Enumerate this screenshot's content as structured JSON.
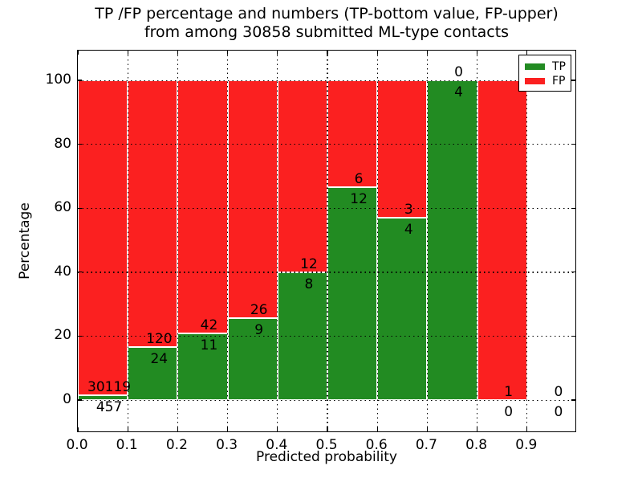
{
  "figure": {
    "title_line1": "TP /FP percentage and numbers (TP-bottom value, FP-upper)",
    "title_line2": "from among 30858 submitted ML-type contacts"
  },
  "chart_data": {
    "type": "bar",
    "subtype": "stacked-100-percent",
    "title": "TP /FP percentage and numbers (TP-bottom value, FP-upper) from among 30858 submitted ML-type contacts",
    "xlabel": "Predicted probability",
    "ylabel": "Percentage",
    "total_contacts": 30858,
    "grid": "dotted, drawn above bars",
    "xlim": [
      0.0,
      1.0
    ],
    "ylim": [
      -10,
      110
    ],
    "x_ticks": [
      0.0,
      0.1,
      0.2,
      0.3,
      0.4,
      0.5,
      0.6,
      0.7,
      0.8,
      0.9
    ],
    "x_tick_labels": [
      "0.0",
      "0.1",
      "0.2",
      "0.3",
      "0.4",
      "0.5",
      "0.6",
      "0.7",
      "0.8",
      "0.9"
    ],
    "y_ticks": [
      0,
      20,
      40,
      60,
      80,
      100
    ],
    "y_tick_labels": [
      "0",
      "20",
      "40",
      "60",
      "80",
      "100"
    ],
    "bin_width": 0.1,
    "note": "Each bin: green TP% at bottom, red FP% stacked to 100%. Labels show raw counts: FP above green top, TP below it.",
    "bins": [
      {
        "range": "0.0-0.1",
        "tp": 457,
        "fp": 30119
      },
      {
        "range": "0.1-0.2",
        "tp": 24,
        "fp": 120
      },
      {
        "range": "0.2-0.3",
        "tp": 11,
        "fp": 42
      },
      {
        "range": "0.3-0.4",
        "tp": 9,
        "fp": 26
      },
      {
        "range": "0.4-0.5",
        "tp": 8,
        "fp": 12
      },
      {
        "range": "0.5-0.6",
        "tp": 12,
        "fp": 6
      },
      {
        "range": "0.6-0.7",
        "tp": 4,
        "fp": 3
      },
      {
        "range": "0.7-0.8",
        "tp": 4,
        "fp": 0
      },
      {
        "range": "0.8-0.9",
        "tp": 0,
        "fp": 1
      },
      {
        "range": "0.9-1.0",
        "tp": 0,
        "fp": 0
      }
    ],
    "colors": {
      "tp": "#228b22",
      "fp": "#fb2020",
      "bar_edge": "#ffffff",
      "grid": "#000000"
    },
    "legend": {
      "position": "upper right",
      "entries": [
        {
          "label": "TP",
          "color": "#228b22"
        },
        {
          "label": "FP",
          "color": "#fb2020"
        }
      ]
    }
  }
}
